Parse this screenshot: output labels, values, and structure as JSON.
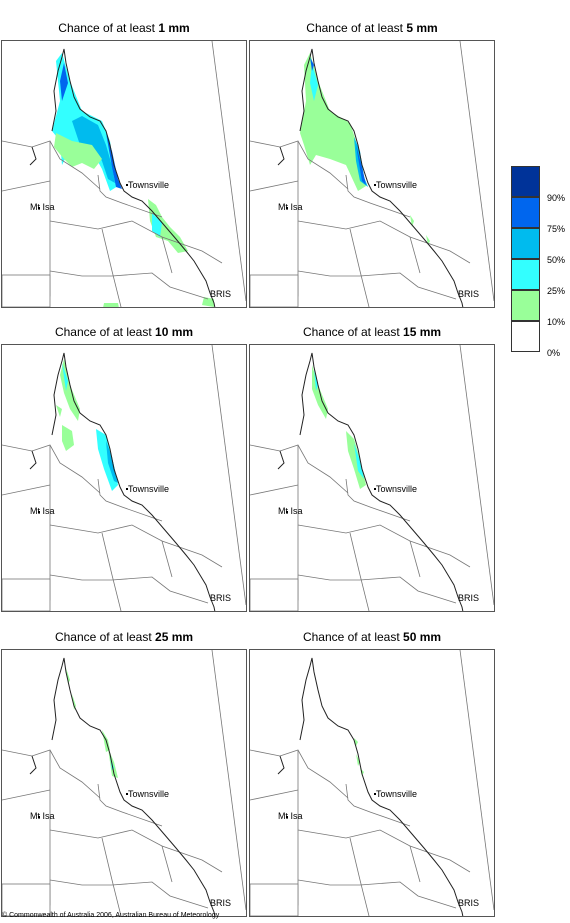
{
  "panels": [
    {
      "title_prefix": "Chance of at least",
      "threshold": "1 mm"
    },
    {
      "title_prefix": "Chance of at least",
      "threshold": "5 mm"
    },
    {
      "title_prefix": "Chance of at least",
      "threshold": "10 mm"
    },
    {
      "title_prefix": "Chance of at least",
      "threshold": "15 mm"
    },
    {
      "title_prefix": "Chance of at least",
      "threshold": "25 mm"
    },
    {
      "title_prefix": "Chance of at least",
      "threshold": "50 mm"
    }
  ],
  "places": {
    "townsville": "Townsville",
    "mt_isa": "Mt Isa",
    "brisbane": "BRIS"
  },
  "legend": {
    "labels": [
      "90%",
      "75%",
      "50%",
      "25%",
      "10%",
      "0%"
    ],
    "colors": [
      "#003399",
      "#0066ee",
      "#00bbee",
      "#33ffff",
      "#99ff99",
      "#ffffff"
    ]
  },
  "copyright": "© Commonwealth of Australia 2006, Australian Bureau of Meteorology"
}
